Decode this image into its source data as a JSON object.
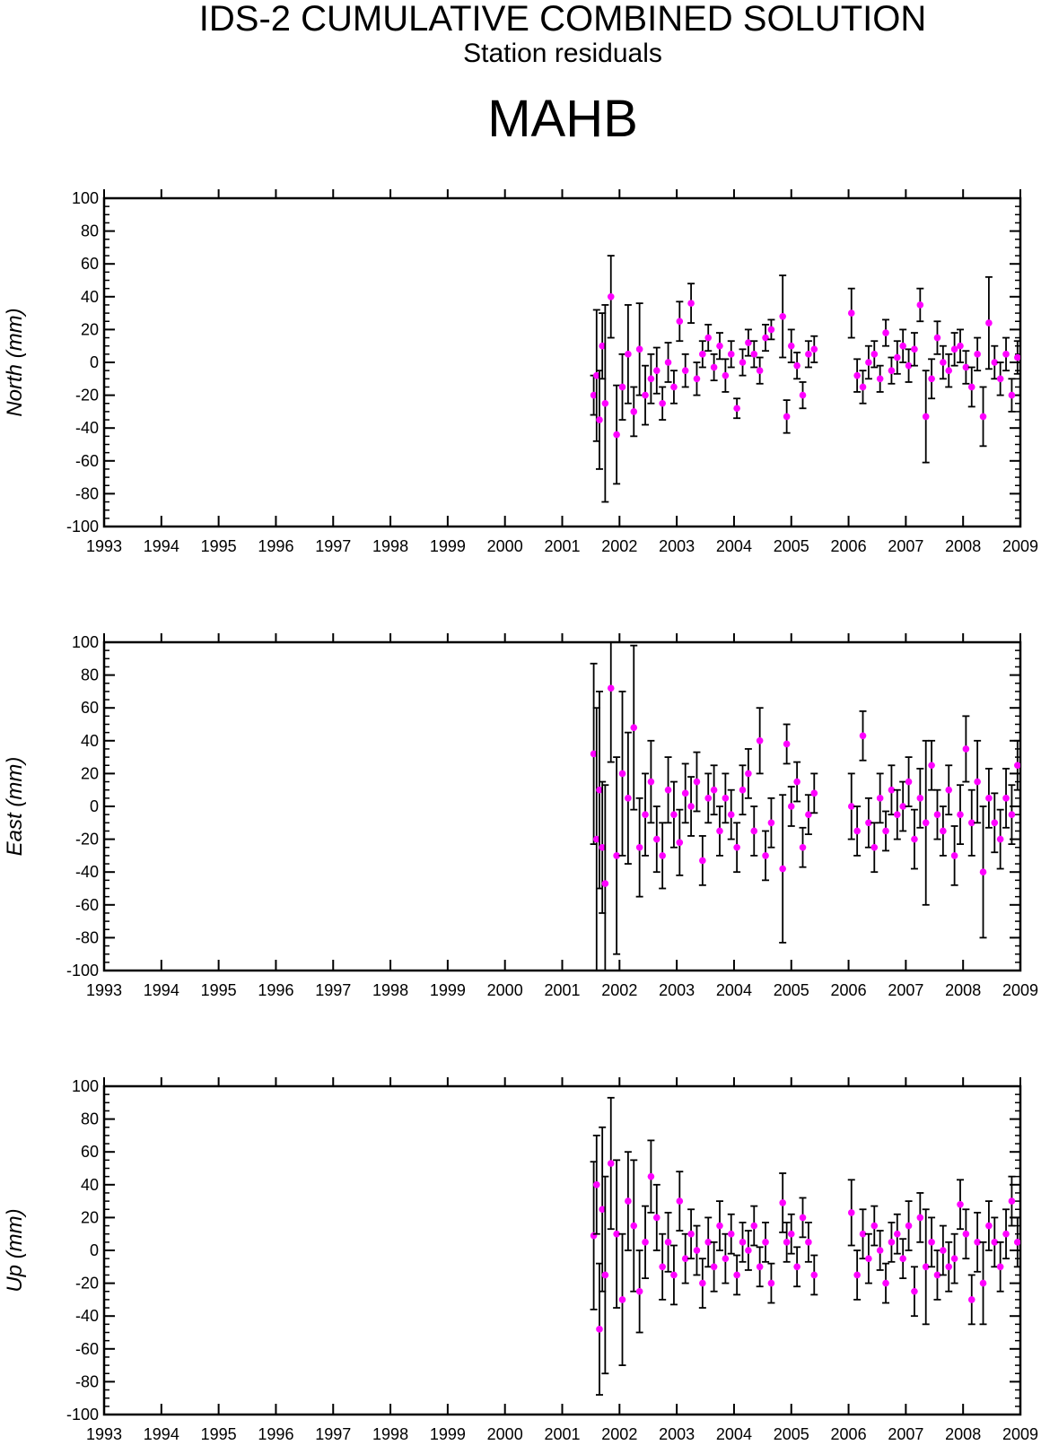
{
  "header": {
    "title": "IDS-2 CUMULATIVE COMBINED SOLUTION",
    "subtitle": "Station residuals",
    "station": "MAHB"
  },
  "colors": {
    "point": "#ff00ff",
    "errorbar": "#000000",
    "axis": "#000000"
  },
  "chart_data": [
    {
      "type": "scatter",
      "ylabel": "North (mm)",
      "xlim": [
        1993,
        2009
      ],
      "ylim": [
        -100,
        100
      ],
      "x_ticks": [
        "1993",
        "1994",
        "1995",
        "1996",
        "1997",
        "1998",
        "1999",
        "2000",
        "2001",
        "2002",
        "2003",
        "2004",
        "2005",
        "2006",
        "2007",
        "2008",
        "2009"
      ],
      "y_ticks": [
        "100",
        "80",
        "60",
        "40",
        "20",
        "0",
        "-20",
        "-40",
        "-60",
        "-80",
        "-100"
      ],
      "series": [
        {
          "x": [
            2001.55,
            2001.6,
            2001.65,
            2001.7,
            2001.75,
            2001.85,
            2001.95,
            2002.05,
            2002.15,
            2002.25,
            2002.35,
            2002.45,
            2002.55,
            2002.65,
            2002.75,
            2002.85,
            2002.95,
            2003.05,
            2003.15,
            2003.25,
            2003.35,
            2003.45,
            2003.55,
            2003.65,
            2003.75,
            2003.85,
            2003.95,
            2004.05,
            2004.15,
            2004.25,
            2004.35,
            2004.45,
            2004.55,
            2004.65,
            2004.85,
            2004.92,
            2005.0,
            2005.1,
            2005.2,
            2005.3,
            2005.4,
            2006.05,
            2006.15,
            2006.25,
            2006.35,
            2006.45,
            2006.55,
            2006.65,
            2006.75,
            2006.85,
            2006.95,
            2007.05,
            2007.15,
            2007.25,
            2007.35,
            2007.45,
            2007.55,
            2007.65,
            2007.75,
            2007.85,
            2007.95,
            2008.05,
            2008.15,
            2008.25,
            2008.35,
            2008.45,
            2008.55,
            2008.65,
            2008.75,
            2008.85,
            2008.95
          ],
          "y": [
            -20,
            -8,
            -35,
            10,
            -25,
            40,
            -44,
            -15,
            5,
            -30,
            8,
            -20,
            -10,
            -5,
            -25,
            0,
            -15,
            25,
            -5,
            36,
            -10,
            5,
            15,
            -3,
            10,
            -8,
            5,
            -28,
            0,
            12,
            5,
            -5,
            15,
            20,
            28,
            -33,
            10,
            -2,
            -20,
            5,
            8,
            30,
            -8,
            -15,
            0,
            5,
            -10,
            18,
            -5,
            3,
            10,
            -2,
            8,
            35,
            -33,
            -10,
            15,
            0,
            -5,
            8,
            10,
            -3,
            -15,
            5,
            -33,
            24,
            0,
            -10,
            5,
            -20,
            3
          ],
          "err": [
            12,
            40,
            30,
            20,
            60,
            25,
            30,
            20,
            30,
            15,
            28,
            18,
            15,
            14,
            10,
            12,
            10,
            12,
            10,
            12,
            10,
            8,
            8,
            8,
            8,
            10,
            8,
            6,
            8,
            8,
            8,
            8,
            8,
            6,
            25,
            10,
            10,
            8,
            8,
            8,
            8,
            15,
            10,
            10,
            10,
            8,
            8,
            8,
            8,
            10,
            10,
            10,
            10,
            10,
            28,
            12,
            10,
            10,
            10,
            10,
            10,
            10,
            12,
            10,
            18,
            28,
            10,
            10,
            10,
            10,
            10
          ]
        }
      ]
    },
    {
      "type": "scatter",
      "ylabel": "East (mm)",
      "xlim": [
        1993,
        2009
      ],
      "ylim": [
        -100,
        100
      ],
      "x_ticks": [
        "1993",
        "1994",
        "1995",
        "1996",
        "1997",
        "1998",
        "1999",
        "2000",
        "2001",
        "2002",
        "2003",
        "2004",
        "2005",
        "2006",
        "2007",
        "2008",
        "2009"
      ],
      "y_ticks": [
        "100",
        "80",
        "60",
        "40",
        "20",
        "0",
        "-20",
        "-40",
        "-60",
        "-80",
        "-100"
      ],
      "series": [
        {
          "x": [
            2001.55,
            2001.6,
            2001.65,
            2001.7,
            2001.75,
            2001.85,
            2001.95,
            2002.05,
            2002.15,
            2002.25,
            2002.35,
            2002.45,
            2002.55,
            2002.65,
            2002.75,
            2002.85,
            2002.95,
            2003.05,
            2003.15,
            2003.25,
            2003.35,
            2003.45,
            2003.55,
            2003.65,
            2003.75,
            2003.85,
            2003.95,
            2004.05,
            2004.15,
            2004.25,
            2004.35,
            2004.45,
            2004.55,
            2004.65,
            2004.85,
            2004.92,
            2005.0,
            2005.1,
            2005.2,
            2005.3,
            2005.4,
            2006.05,
            2006.15,
            2006.25,
            2006.35,
            2006.45,
            2006.55,
            2006.65,
            2006.75,
            2006.85,
            2006.95,
            2007.05,
            2007.15,
            2007.25,
            2007.35,
            2007.45,
            2007.55,
            2007.65,
            2007.75,
            2007.85,
            2007.95,
            2008.05,
            2008.15,
            2008.25,
            2008.35,
            2008.45,
            2008.55,
            2008.65,
            2008.75,
            2008.85,
            2008.95
          ],
          "y": [
            32,
            -20,
            10,
            -25,
            -47,
            72,
            -30,
            20,
            5,
            48,
            -25,
            -5,
            15,
            -20,
            -30,
            10,
            -5,
            -22,
            8,
            0,
            15,
            -33,
            5,
            10,
            -15,
            5,
            -5,
            -25,
            10,
            20,
            -15,
            40,
            -30,
            -10,
            -38,
            38,
            0,
            15,
            -25,
            -5,
            8,
            0,
            -15,
            43,
            -10,
            -25,
            5,
            -15,
            10,
            -5,
            0,
            15,
            -20,
            5,
            -10,
            25,
            -5,
            -15,
            10,
            -30,
            -5,
            35,
            -10,
            15,
            -40,
            5,
            -10,
            -20,
            5,
            -5,
            25
          ],
          "err": [
            55,
            80,
            60,
            40,
            60,
            45,
            60,
            50,
            40,
            50,
            30,
            25,
            25,
            20,
            20,
            20,
            20,
            20,
            18,
            18,
            18,
            15,
            15,
            15,
            15,
            15,
            15,
            15,
            15,
            15,
            15,
            20,
            15,
            15,
            45,
            12,
            12,
            12,
            12,
            12,
            12,
            20,
            15,
            15,
            15,
            15,
            15,
            12,
            15,
            15,
            15,
            15,
            18,
            18,
            50,
            15,
            15,
            15,
            15,
            18,
            18,
            20,
            20,
            25,
            40,
            18,
            18,
            18,
            18,
            18,
            15
          ]
        }
      ]
    },
    {
      "type": "scatter",
      "ylabel": "Up (mm)",
      "xlim": [
        1993,
        2009
      ],
      "ylim": [
        -100,
        100
      ],
      "x_ticks": [
        "1993",
        "1994",
        "1995",
        "1996",
        "1997",
        "1998",
        "1999",
        "2000",
        "2001",
        "2002",
        "2003",
        "2004",
        "2005",
        "2006",
        "2007",
        "2008",
        "2009"
      ],
      "y_ticks": [
        "100",
        "80",
        "60",
        "40",
        "20",
        "0",
        "-20",
        "-40",
        "-60",
        "-80",
        "-100"
      ],
      "series": [
        {
          "x": [
            2001.55,
            2001.6,
            2001.65,
            2001.7,
            2001.75,
            2001.85,
            2001.95,
            2002.05,
            2002.15,
            2002.25,
            2002.35,
            2002.45,
            2002.55,
            2002.65,
            2002.75,
            2002.85,
            2002.95,
            2003.05,
            2003.15,
            2003.25,
            2003.35,
            2003.45,
            2003.55,
            2003.65,
            2003.75,
            2003.85,
            2003.95,
            2004.05,
            2004.15,
            2004.25,
            2004.35,
            2004.45,
            2004.55,
            2004.65,
            2004.85,
            2004.92,
            2005.0,
            2005.1,
            2005.2,
            2005.3,
            2005.4,
            2006.05,
            2006.15,
            2006.25,
            2006.35,
            2006.45,
            2006.55,
            2006.65,
            2006.75,
            2006.85,
            2006.95,
            2007.05,
            2007.15,
            2007.25,
            2007.35,
            2007.45,
            2007.55,
            2007.65,
            2007.75,
            2007.85,
            2007.95,
            2008.05,
            2008.15,
            2008.25,
            2008.35,
            2008.45,
            2008.55,
            2008.65,
            2008.75,
            2008.85,
            2008.95
          ],
          "y": [
            9,
            40,
            -48,
            25,
            -15,
            53,
            10,
            -30,
            30,
            15,
            -25,
            5,
            45,
            20,
            -10,
            5,
            -15,
            30,
            -5,
            10,
            0,
            -20,
            5,
            -10,
            15,
            -5,
            10,
            -15,
            5,
            0,
            15,
            -10,
            5,
            -20,
            29,
            5,
            10,
            -10,
            20,
            5,
            -15,
            23,
            -15,
            10,
            -5,
            15,
            0,
            -20,
            5,
            10,
            -5,
            15,
            -25,
            20,
            -10,
            5,
            -15,
            0,
            -10,
            -5,
            28,
            10,
            -30,
            5,
            -20,
            15,
            5,
            -10,
            10,
            30,
            5
          ],
          "err": [
            45,
            30,
            40,
            50,
            60,
            40,
            45,
            40,
            30,
            40,
            25,
            22,
            22,
            20,
            20,
            18,
            18,
            18,
            15,
            15,
            15,
            15,
            15,
            15,
            15,
            15,
            12,
            12,
            12,
            12,
            12,
            12,
            12,
            12,
            18,
            12,
            12,
            12,
            12,
            12,
            12,
            20,
            15,
            15,
            15,
            12,
            12,
            12,
            12,
            12,
            12,
            15,
            15,
            15,
            35,
            15,
            15,
            15,
            15,
            15,
            15,
            15,
            15,
            18,
            25,
            15,
            15,
            15,
            15,
            15,
            15
          ]
        }
      ]
    }
  ]
}
